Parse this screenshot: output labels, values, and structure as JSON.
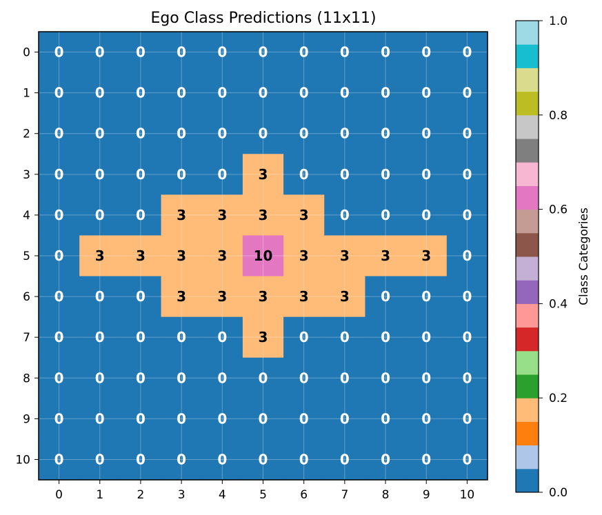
{
  "chart_data": {
    "type": "heatmap",
    "title": "Ego Class Predictions (11x11)",
    "x_ticks": [
      "0",
      "1",
      "2",
      "3",
      "4",
      "5",
      "6",
      "7",
      "8",
      "9",
      "10"
    ],
    "y_ticks": [
      "0",
      "1",
      "2",
      "3",
      "4",
      "5",
      "6",
      "7",
      "8",
      "9",
      "10"
    ],
    "grid": true,
    "values": [
      [
        0,
        0,
        0,
        0,
        0,
        0,
        0,
        0,
        0,
        0,
        0
      ],
      [
        0,
        0,
        0,
        0,
        0,
        0,
        0,
        0,
        0,
        0,
        0
      ],
      [
        0,
        0,
        0,
        0,
        0,
        0,
        0,
        0,
        0,
        0,
        0
      ],
      [
        0,
        0,
        0,
        0,
        0,
        3,
        0,
        0,
        0,
        0,
        0
      ],
      [
        0,
        0,
        0,
        3,
        3,
        3,
        3,
        0,
        0,
        0,
        0
      ],
      [
        0,
        3,
        3,
        3,
        3,
        10,
        3,
        3,
        3,
        3,
        0
      ],
      [
        0,
        0,
        0,
        3,
        3,
        3,
        3,
        3,
        0,
        0,
        0
      ],
      [
        0,
        0,
        0,
        0,
        0,
        3,
        0,
        0,
        0,
        0,
        0
      ],
      [
        0,
        0,
        0,
        0,
        0,
        0,
        0,
        0,
        0,
        0,
        0
      ],
      [
        0,
        0,
        0,
        0,
        0,
        0,
        0,
        0,
        0,
        0,
        0
      ],
      [
        0,
        0,
        0,
        0,
        0,
        0,
        0,
        0,
        0,
        0,
        0
      ]
    ],
    "value_colors": {
      "0": "#1f77b4",
      "3": "#ffbb78",
      "10": "#e377c2"
    },
    "label_colors": {
      "0": "#ffffff",
      "3": "#000000",
      "10": "#000000"
    },
    "colorbar": {
      "label": "Class Categories",
      "range": [
        0.0,
        1.0
      ],
      "ticks": [
        "0.0",
        "0.2",
        "0.4",
        "0.6",
        "0.8",
        "1.0"
      ],
      "colormap": "tab20",
      "colors": [
        "#1f77b4",
        "#aec7e8",
        "#ff7f0e",
        "#ffbb78",
        "#2ca02c",
        "#98df8a",
        "#d62728",
        "#ff9896",
        "#9467bd",
        "#c5b0d5",
        "#8c564b",
        "#c49c94",
        "#e377c2",
        "#f7b6d2",
        "#7f7f7f",
        "#c7c7c7",
        "#bcbd22",
        "#dbdb8d",
        "#17becf",
        "#9edae5"
      ]
    }
  }
}
